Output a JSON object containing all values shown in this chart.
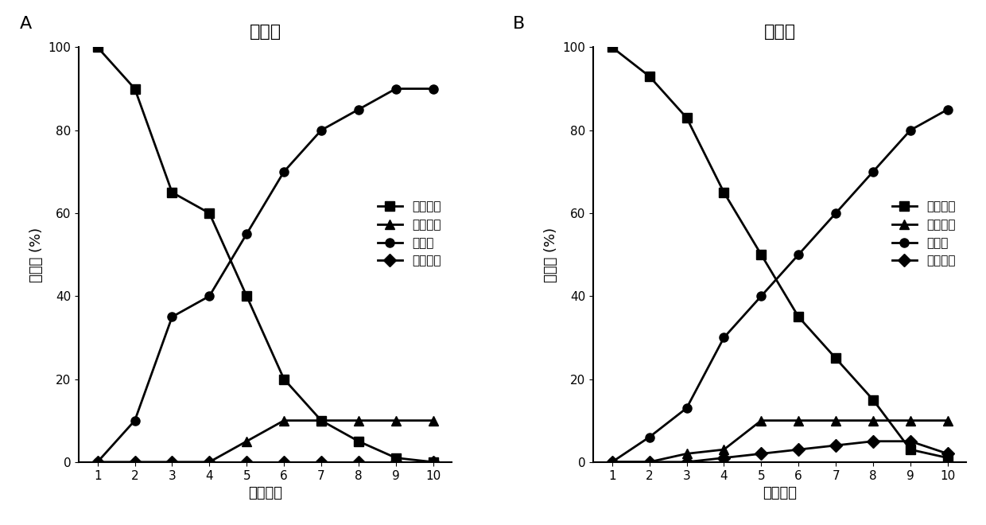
{
  "days": [
    1,
    2,
    3,
    4,
    5,
    6,
    7,
    8,
    9,
    10
  ],
  "panel_A": {
    "title": "对照组",
    "normal_larva": [
      100,
      90,
      65,
      60,
      40,
      20,
      10,
      5,
      1,
      0
    ],
    "dead_larva": [
      0,
      0,
      0,
      0,
      5,
      10,
      10,
      10,
      10,
      10
    ],
    "normal_pupa": [
      0,
      10,
      35,
      40,
      55,
      70,
      80,
      85,
      90,
      90
    ],
    "abnormal_pupa": [
      0,
      0,
      0,
      0,
      0,
      0,
      0,
      0,
      0,
      0
    ]
  },
  "panel_B": {
    "title": "实验组",
    "normal_larva": [
      100,
      93,
      83,
      65,
      50,
      35,
      25,
      15,
      3,
      1
    ],
    "dead_larva": [
      0,
      0,
      2,
      3,
      10,
      10,
      10,
      10,
      10,
      10
    ],
    "normal_pupa": [
      0,
      6,
      13,
      30,
      40,
      50,
      60,
      70,
      80,
      85
    ],
    "abnormal_pupa": [
      0,
      0,
      0,
      1,
      2,
      3,
      4,
      5,
      5,
      2
    ]
  },
  "legend_labels": [
    "正常幼虫",
    "死亡幼虫",
    "正常蔣",
    "不正常蔣"
  ],
  "xlabel": "实验天数",
  "ylabel": "百分比 (%)",
  "color": "#000000",
  "ylim": [
    0,
    100
  ],
  "yticks": [
    0,
    20,
    40,
    60,
    80,
    100
  ],
  "marker_normal_larva": "s",
  "marker_dead_larva": "^",
  "marker_normal_pupa": "o",
  "marker_abnormal_pupa": "D",
  "linewidth": 2.0,
  "markersize": 8,
  "panel_label_A": "A",
  "panel_label_B": "B"
}
